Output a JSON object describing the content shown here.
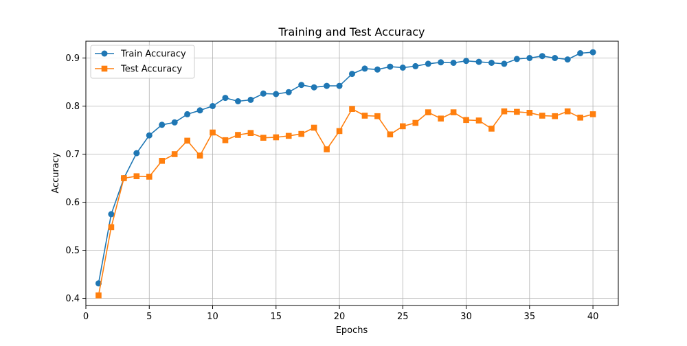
{
  "chart_data": {
    "type": "line",
    "title": "Training and Test Accuracy",
    "xlabel": "Epochs",
    "ylabel": "Accuracy",
    "xlim": [
      0,
      42
    ],
    "ylim": [
      0.385,
      0.935
    ],
    "xticks": [
      0,
      5,
      10,
      15,
      20,
      25,
      30,
      35,
      40
    ],
    "yticks": [
      0.4,
      0.5,
      0.6,
      0.7,
      0.8,
      0.9
    ],
    "grid": true,
    "legend_position": "top-left",
    "x": [
      1,
      2,
      3,
      4,
      5,
      6,
      7,
      8,
      9,
      10,
      11,
      12,
      13,
      14,
      15,
      16,
      17,
      18,
      19,
      20,
      21,
      22,
      23,
      24,
      25,
      26,
      27,
      28,
      29,
      30,
      31,
      32,
      33,
      34,
      35,
      36,
      37,
      38,
      39,
      40
    ],
    "series": [
      {
        "name": "Train Accuracy",
        "color": "#1f77b4",
        "marker": "circle",
        "values": [
          0.431,
          0.575,
          0.65,
          0.702,
          0.739,
          0.761,
          0.766,
          0.783,
          0.791,
          0.8,
          0.817,
          0.81,
          0.813,
          0.826,
          0.825,
          0.829,
          0.844,
          0.839,
          0.842,
          0.842,
          0.867,
          0.878,
          0.876,
          0.882,
          0.88,
          0.883,
          0.888,
          0.891,
          0.89,
          0.894,
          0.892,
          0.89,
          0.888,
          0.898,
          0.9,
          0.904,
          0.9,
          0.897,
          0.91,
          0.912
        ]
      },
      {
        "name": "Test Accuracy",
        "color": "#ff7f0e",
        "marker": "square",
        "values": [
          0.406,
          0.548,
          0.65,
          0.654,
          0.653,
          0.686,
          0.7,
          0.728,
          0.697,
          0.745,
          0.729,
          0.74,
          0.744,
          0.734,
          0.735,
          0.738,
          0.742,
          0.755,
          0.71,
          0.748,
          0.794,
          0.78,
          0.779,
          0.741,
          0.758,
          0.765,
          0.787,
          0.774,
          0.787,
          0.771,
          0.77,
          0.753,
          0.789,
          0.788,
          0.786,
          0.78,
          0.779,
          0.789,
          0.776,
          0.783
        ]
      }
    ]
  }
}
